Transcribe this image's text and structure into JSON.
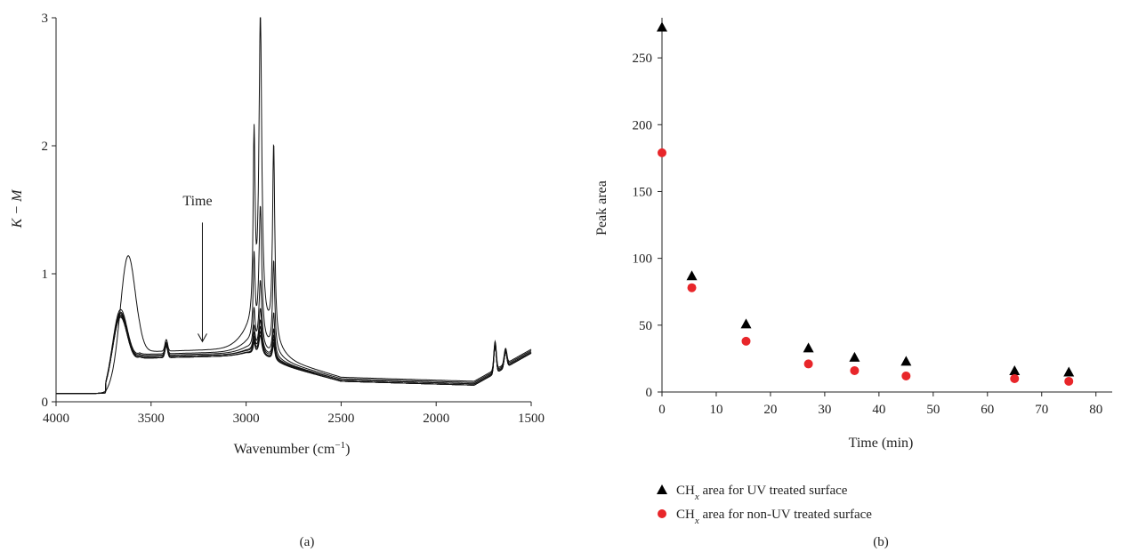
{
  "panel_a_label": "(a)",
  "panel_b_label": "(b)",
  "chart_data": [
    {
      "type": "line",
      "panel": "(a)",
      "xlabel": "Wavenumber (cm",
      "xlabel_superscript": "−1",
      "xlabel_tail": ")",
      "ylabel": "K − M",
      "xlim": [
        4000,
        1500
      ],
      "ylim": [
        0,
        3
      ],
      "x_ticks": [
        4000,
        3500,
        3000,
        2500,
        2000,
        1500
      ],
      "y_ticks": [
        0,
        1,
        2,
        3
      ],
      "annotation": "Time",
      "annotation_arrow_x": 3230,
      "annotation_arrow_from_y": 1.4,
      "annotation_arrow_to_y": 0.47,
      "series": [
        {
          "peak_ch": 3.01,
          "peak_ch_sym": 2.08,
          "peak_ch_side": 2.08,
          "oh_peak": 1.14,
          "oh_center": 3620,
          "baseline_mid": 0.39,
          "baseline_low": 0.16
        },
        {
          "peak_ch": 1.51,
          "peak_ch_sym": 1.13,
          "peak_ch_side": 1.13,
          "oh_peak": 0.72,
          "oh_center": 3660,
          "baseline_mid": 0.37,
          "baseline_low": 0.15
        },
        {
          "peak_ch": 0.93,
          "peak_ch_sym": 0.7,
          "peak_ch_side": 0.7,
          "oh_peak": 0.7,
          "oh_center": 3660,
          "baseline_mid": 0.36,
          "baseline_low": 0.14
        },
        {
          "peak_ch": 0.71,
          "peak_ch_sym": 0.57,
          "peak_ch_side": 0.57,
          "oh_peak": 0.69,
          "oh_center": 3660,
          "baseline_mid": 0.35,
          "baseline_low": 0.14
        },
        {
          "peak_ch": 0.62,
          "peak_ch_sym": 0.52,
          "peak_ch_side": 0.52,
          "oh_peak": 0.68,
          "oh_center": 3660,
          "baseline_mid": 0.35,
          "baseline_low": 0.13
        },
        {
          "peak_ch": 0.57,
          "peak_ch_sym": 0.49,
          "peak_ch_side": 0.49,
          "oh_peak": 0.67,
          "oh_center": 3660,
          "baseline_mid": 0.34,
          "baseline_low": 0.13
        },
        {
          "peak_ch": 0.53,
          "peak_ch_sym": 0.46,
          "peak_ch_side": 0.46,
          "oh_peak": 0.66,
          "oh_center": 3660,
          "baseline_mid": 0.34,
          "baseline_low": 0.13
        },
        {
          "peak_ch": 0.5,
          "peak_ch_sym": 0.44,
          "peak_ch_side": 0.44,
          "oh_peak": 0.66,
          "oh_center": 3660,
          "baseline_mid": 0.34,
          "baseline_low": 0.13
        }
      ]
    },
    {
      "type": "scatter",
      "panel": "(b)",
      "xlabel": "Time (min)",
      "ylabel": "Peak area",
      "xlim": [
        0,
        83
      ],
      "ylim": [
        0,
        280
      ],
      "x_ticks": [
        0,
        10,
        20,
        30,
        40,
        50,
        60,
        70,
        80
      ],
      "y_ticks": [
        0,
        50,
        100,
        150,
        200,
        250
      ],
      "series": [
        {
          "legend_prefix": "CH",
          "legend_sub": "x",
          "legend_rest": " area for UV treated surface",
          "marker": "triangle",
          "color": "#000000",
          "x": [
            0,
            5.5,
            15.5,
            27,
            35.5,
            45,
            65,
            75
          ],
          "y": [
            273,
            87,
            51,
            33,
            26,
            23,
            16,
            15
          ]
        },
        {
          "legend_prefix": "CH",
          "legend_sub": "x",
          "legend_rest": " area for non-UV treated surface",
          "marker": "circle",
          "color": "#e8262a",
          "x": [
            0,
            5.5,
            15.5,
            27,
            35.5,
            45,
            65,
            75
          ],
          "y": [
            179,
            78,
            38,
            21,
            16,
            12,
            10,
            8
          ]
        }
      ]
    }
  ]
}
